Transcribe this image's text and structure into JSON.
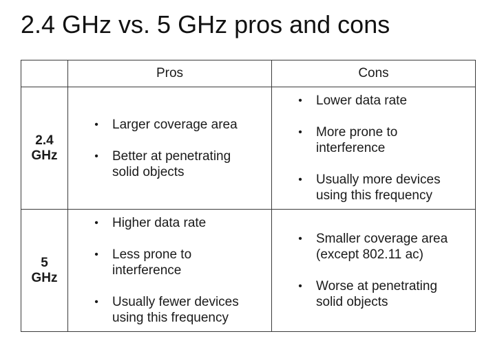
{
  "title": "2.4 GHz vs. 5 GHz pros and cons",
  "table": {
    "headers": {
      "corner": "",
      "pros": "Pros",
      "cons": "Cons"
    },
    "rows": [
      {
        "band_line1": "2.4",
        "band_line2": "GHz",
        "pros": [
          [
            "Larger coverage area"
          ],
          [
            "Better at penetrating",
            "solid objects"
          ]
        ],
        "cons": [
          [
            "Lower data rate"
          ],
          [
            "More prone to",
            "interference"
          ],
          [
            "Usually more devices",
            "using this frequency"
          ]
        ]
      },
      {
        "band_line1": "5",
        "band_line2": "GHz",
        "pros": [
          [
            "Higher data rate"
          ],
          [
            "Less prone to",
            "interference"
          ],
          [
            "Usually fewer devices",
            "using this frequency"
          ]
        ],
        "cons": [
          [
            "Smaller coverage area",
            "(except 802.11 ac)"
          ],
          [
            "Worse at penetrating",
            "solid objects"
          ]
        ]
      }
    ],
    "bullet_glyph": "•"
  }
}
